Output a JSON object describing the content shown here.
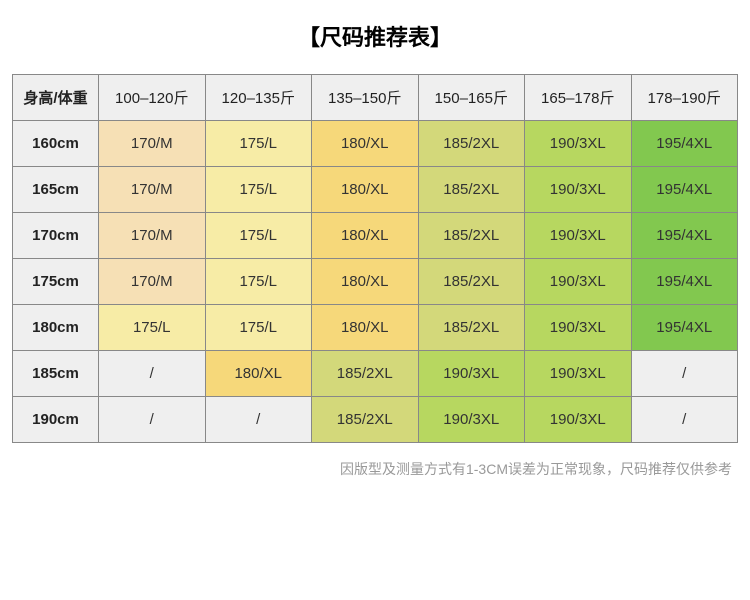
{
  "title": "【尺码推荐表】",
  "corner_label": "身高/体重",
  "columns": [
    "100–120斤",
    "120–135斤",
    "135–150斤",
    "150–165斤",
    "165–178斤",
    "178–190斤"
  ],
  "row_headers": [
    "160cm",
    "165cm",
    "170cm",
    "175cm",
    "180cm",
    "185cm",
    "190cm"
  ],
  "cells": [
    [
      "170/M",
      "175/L",
      "180/XL",
      "185/2XL",
      "190/3XL",
      "195/4XL"
    ],
    [
      "170/M",
      "175/L",
      "180/XL",
      "185/2XL",
      "190/3XL",
      "195/4XL"
    ],
    [
      "170/M",
      "175/L",
      "180/XL",
      "185/2XL",
      "190/3XL",
      "195/4XL"
    ],
    [
      "170/M",
      "175/L",
      "180/XL",
      "185/2XL",
      "190/3XL",
      "195/4XL"
    ],
    [
      "175/L",
      "175/L",
      "180/XL",
      "185/2XL",
      "190/3XL",
      "195/4XL"
    ],
    [
      "/",
      "180/XL",
      "185/2XL",
      "190/3XL",
      "190/3XL",
      "/"
    ],
    [
      "/",
      "/",
      "185/2XL",
      "190/3XL",
      "190/3XL",
      "/"
    ]
  ],
  "cell_colors": [
    [
      "#f6e0b5",
      "#f7eca6",
      "#f6d87a",
      "#d3d87a",
      "#b7d760",
      "#82c84f"
    ],
    [
      "#f6e0b5",
      "#f7eca6",
      "#f6d87a",
      "#d3d87a",
      "#b7d760",
      "#82c84f"
    ],
    [
      "#f6e0b5",
      "#f7eca6",
      "#f6d87a",
      "#d3d87a",
      "#b7d760",
      "#82c84f"
    ],
    [
      "#f6e0b5",
      "#f7eca6",
      "#f6d87a",
      "#d3d87a",
      "#b7d760",
      "#82c84f"
    ],
    [
      "#f7eca6",
      "#f7eca6",
      "#f6d87a",
      "#d3d87a",
      "#b7d760",
      "#82c84f"
    ],
    [
      "#efefef",
      "#f6d87a",
      "#d3d87a",
      "#b7d760",
      "#b7d760",
      "#efefef"
    ],
    [
      "#efefef",
      "#efefef",
      "#d3d87a",
      "#b7d760",
      "#b7d760",
      "#efefef"
    ]
  ],
  "header_bg": "#efefef",
  "border_color": "#888888",
  "note": "因版型及测量方式有1-3CM误差为正常现象，尺码推荐仅供参考",
  "title_fontsize": 22,
  "cell_fontsize": 15,
  "note_fontsize": 14,
  "note_color": "#999999"
}
